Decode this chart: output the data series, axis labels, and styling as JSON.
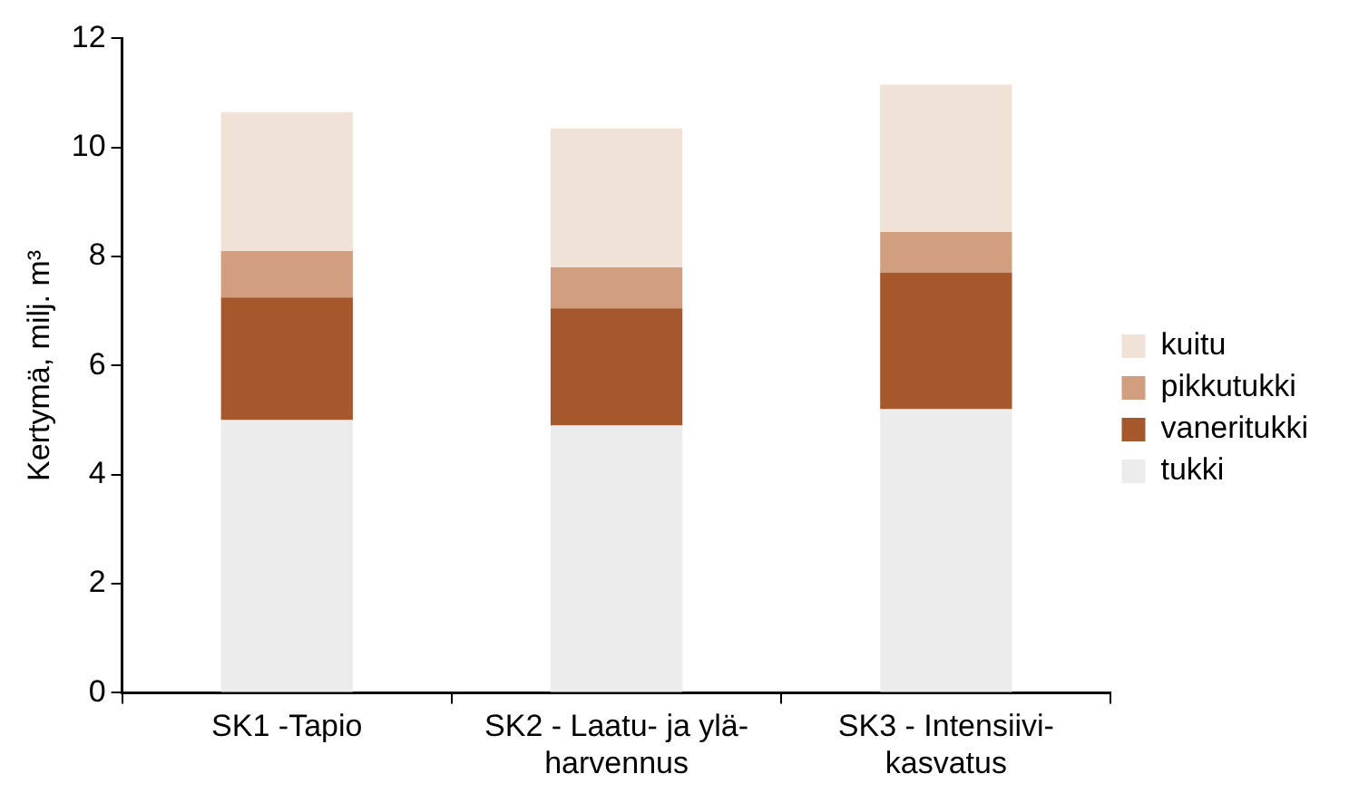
{
  "chart_data": {
    "type": "bar",
    "stacked": true,
    "ylabel": "Kertymä, milj. m³",
    "categories": [
      "SK1 -Tapio",
      "SK2 - Laatu- ja ylä-\nharvennus",
      "SK3 - Intensiivi-\nkasvatus"
    ],
    "series": [
      {
        "name": "tukki",
        "color": "#ececec",
        "values": [
          5.0,
          4.9,
          5.2
        ]
      },
      {
        "name": "vaneritukki",
        "color": "#a5582b",
        "values": [
          2.25,
          2.15,
          2.5
        ]
      },
      {
        "name": "pikkutukki",
        "color": "#d19f80",
        "values": [
          0.85,
          0.75,
          0.75
        ]
      },
      {
        "name": "kuitu",
        "color": "#f0e2d6",
        "values": [
          2.55,
          2.55,
          2.7
        ]
      }
    ],
    "ylim": [
      0,
      12
    ],
    "yticks": [
      0,
      2,
      4,
      6,
      8,
      10,
      12
    ],
    "grid": false,
    "legend": "right"
  }
}
